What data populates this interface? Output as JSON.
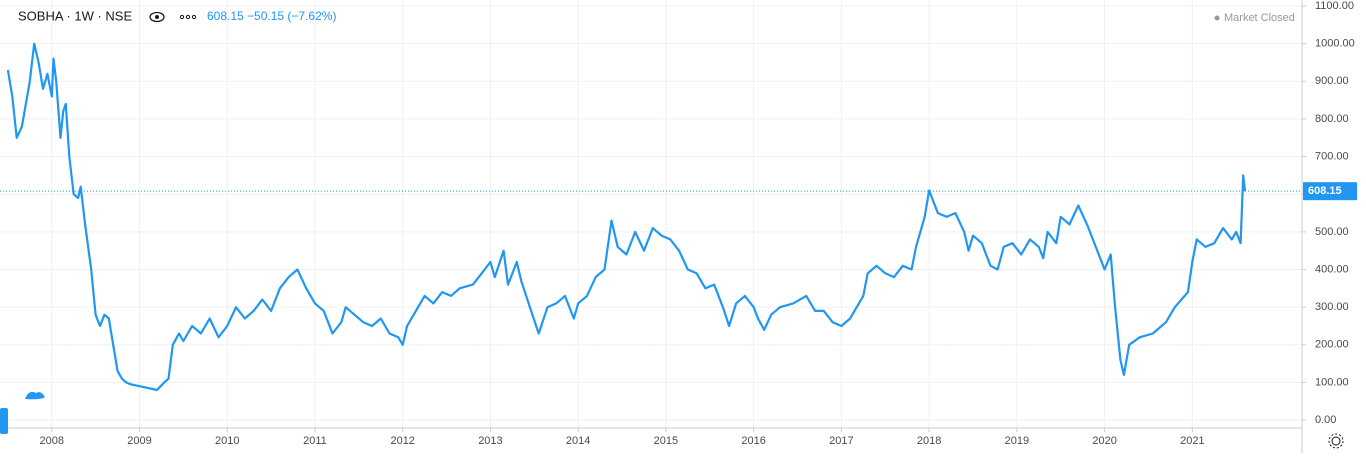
{
  "chart_data": {
    "type": "line",
    "title": "SOBHA · 1W · NSE",
    "quote": "608.15 −50.15 (−7.62%)",
    "status": "Market Closed",
    "series": [
      {
        "name": "SOBHA",
        "color": "#2196f3",
        "x": [
          2007.5,
          2007.55,
          2007.6,
          2007.66,
          2007.75,
          2007.8,
          2007.85,
          2007.9,
          2007.95,
          2008.0,
          2008.02,
          2008.05,
          2008.1,
          2008.13,
          2008.16,
          2008.2,
          2008.25,
          2008.3,
          2008.33,
          2008.38,
          2008.45,
          2008.5,
          2008.55,
          2008.6,
          2008.65,
          2008.7,
          2008.75,
          2008.8,
          2008.85,
          2008.9,
          2009.0,
          2009.1,
          2009.2,
          2009.28,
          2009.33,
          2009.38,
          2009.45,
          2009.5,
          2009.6,
          2009.7,
          2009.8,
          2009.9,
          2010.0,
          2010.1,
          2010.2,
          2010.3,
          2010.4,
          2010.5,
          2010.6,
          2010.7,
          2010.8,
          2010.9,
          2011.0,
          2011.1,
          2011.15,
          2011.2,
          2011.3,
          2011.35,
          2011.45,
          2011.55,
          2011.65,
          2011.75,
          2011.85,
          2011.95,
          2012.0,
          2012.05,
          2012.15,
          2012.25,
          2012.35,
          2012.45,
          2012.55,
          2012.65,
          2012.8,
          2012.9,
          2013.0,
          2013.05,
          2013.15,
          2013.2,
          2013.3,
          2013.35,
          2013.45,
          2013.55,
          2013.65,
          2013.75,
          2013.85,
          2013.95,
          2014.0,
          2014.1,
          2014.2,
          2014.3,
          2014.38,
          2014.45,
          2014.55,
          2014.65,
          2014.75,
          2014.85,
          2014.95,
          2015.05,
          2015.15,
          2015.25,
          2015.35,
          2015.45,
          2015.55,
          2015.65,
          2015.72,
          2015.8,
          2015.9,
          2016.0,
          2016.05,
          2016.12,
          2016.2,
          2016.3,
          2016.45,
          2016.6,
          2016.7,
          2016.8,
          2016.9,
          2017.0,
          2017.1,
          2017.15,
          2017.25,
          2017.3,
          2017.4,
          2017.5,
          2017.6,
          2017.7,
          2017.8,
          2017.85,
          2017.95,
          2018.0,
          2018.05,
          2018.1,
          2018.2,
          2018.3,
          2018.4,
          2018.45,
          2018.5,
          2018.6,
          2018.7,
          2018.78,
          2018.85,
          2018.95,
          2019.05,
          2019.15,
          2019.25,
          2019.3,
          2019.35,
          2019.45,
          2019.5,
          2019.6,
          2019.7,
          2019.8,
          2019.9,
          2020.0,
          2020.07,
          2020.12,
          2020.18,
          2020.22,
          2020.28,
          2020.4,
          2020.55,
          2020.7,
          2020.8,
          2020.95,
          2021.0,
          2021.05,
          2021.15,
          2021.25,
          2021.35,
          2021.45,
          2021.5,
          2021.55,
          2021.58,
          2021.6
        ],
        "values": [
          930,
          860,
          750,
          780,
          900,
          1000,
          950,
          880,
          920,
          860,
          960,
          900,
          750,
          820,
          840,
          700,
          600,
          590,
          620,
          520,
          400,
          280,
          250,
          280,
          270,
          200,
          130,
          110,
          100,
          95,
          90,
          85,
          80,
          100,
          110,
          200,
          230,
          210,
          250,
          230,
          270,
          220,
          250,
          300,
          270,
          290,
          320,
          290,
          350,
          380,
          400,
          350,
          310,
          290,
          260,
          230,
          260,
          300,
          280,
          260,
          250,
          270,
          230,
          220,
          200,
          250,
          290,
          330,
          310,
          340,
          330,
          350,
          360,
          390,
          420,
          380,
          450,
          360,
          420,
          370,
          300,
          230,
          300,
          310,
          330,
          270,
          310,
          330,
          380,
          400,
          530,
          460,
          440,
          500,
          450,
          510,
          490,
          480,
          450,
          400,
          390,
          350,
          360,
          300,
          250,
          310,
          330,
          300,
          270,
          240,
          280,
          300,
          310,
          330,
          290,
          290,
          260,
          250,
          270,
          290,
          330,
          390,
          410,
          390,
          380,
          410,
          400,
          460,
          540,
          610,
          580,
          550,
          540,
          550,
          500,
          450,
          490,
          470,
          410,
          400,
          460,
          470,
          440,
          480,
          460,
          430,
          500,
          470,
          540,
          520,
          570,
          520,
          460,
          400,
          440,
          300,
          160,
          120,
          200,
          220,
          230,
          260,
          300,
          340,
          420,
          480,
          460,
          470,
          510,
          480,
          500,
          470,
          650,
          608.15
        ]
      }
    ],
    "xlim": [
      2007.41,
      2022.25
    ],
    "xticks": [
      2008,
      2009,
      2010,
      2011,
      2012,
      2013,
      2014,
      2015,
      2016,
      2017,
      2018,
      2019,
      2020,
      2021
    ],
    "ylim": [
      -21,
      1116
    ],
    "yticks": [
      {
        "value": 0,
        "label": "0.00"
      },
      {
        "value": 100,
        "label": "100.00"
      },
      {
        "value": 200,
        "label": "200.00"
      },
      {
        "value": 300,
        "label": "300.00"
      },
      {
        "value": 400,
        "label": "400.00"
      },
      {
        "value": 500,
        "label": "500.00"
      },
      {
        "value": 600,
        "label": "600.00"
      },
      {
        "value": 700,
        "label": "700.00"
      },
      {
        "value": 800,
        "label": "800.00"
      },
      {
        "value": 900,
        "label": "900.00"
      },
      {
        "value": 1000,
        "label": "1000.00"
      },
      {
        "value": 1100,
        "label": "1100.00"
      }
    ],
    "grid": true
  }
}
